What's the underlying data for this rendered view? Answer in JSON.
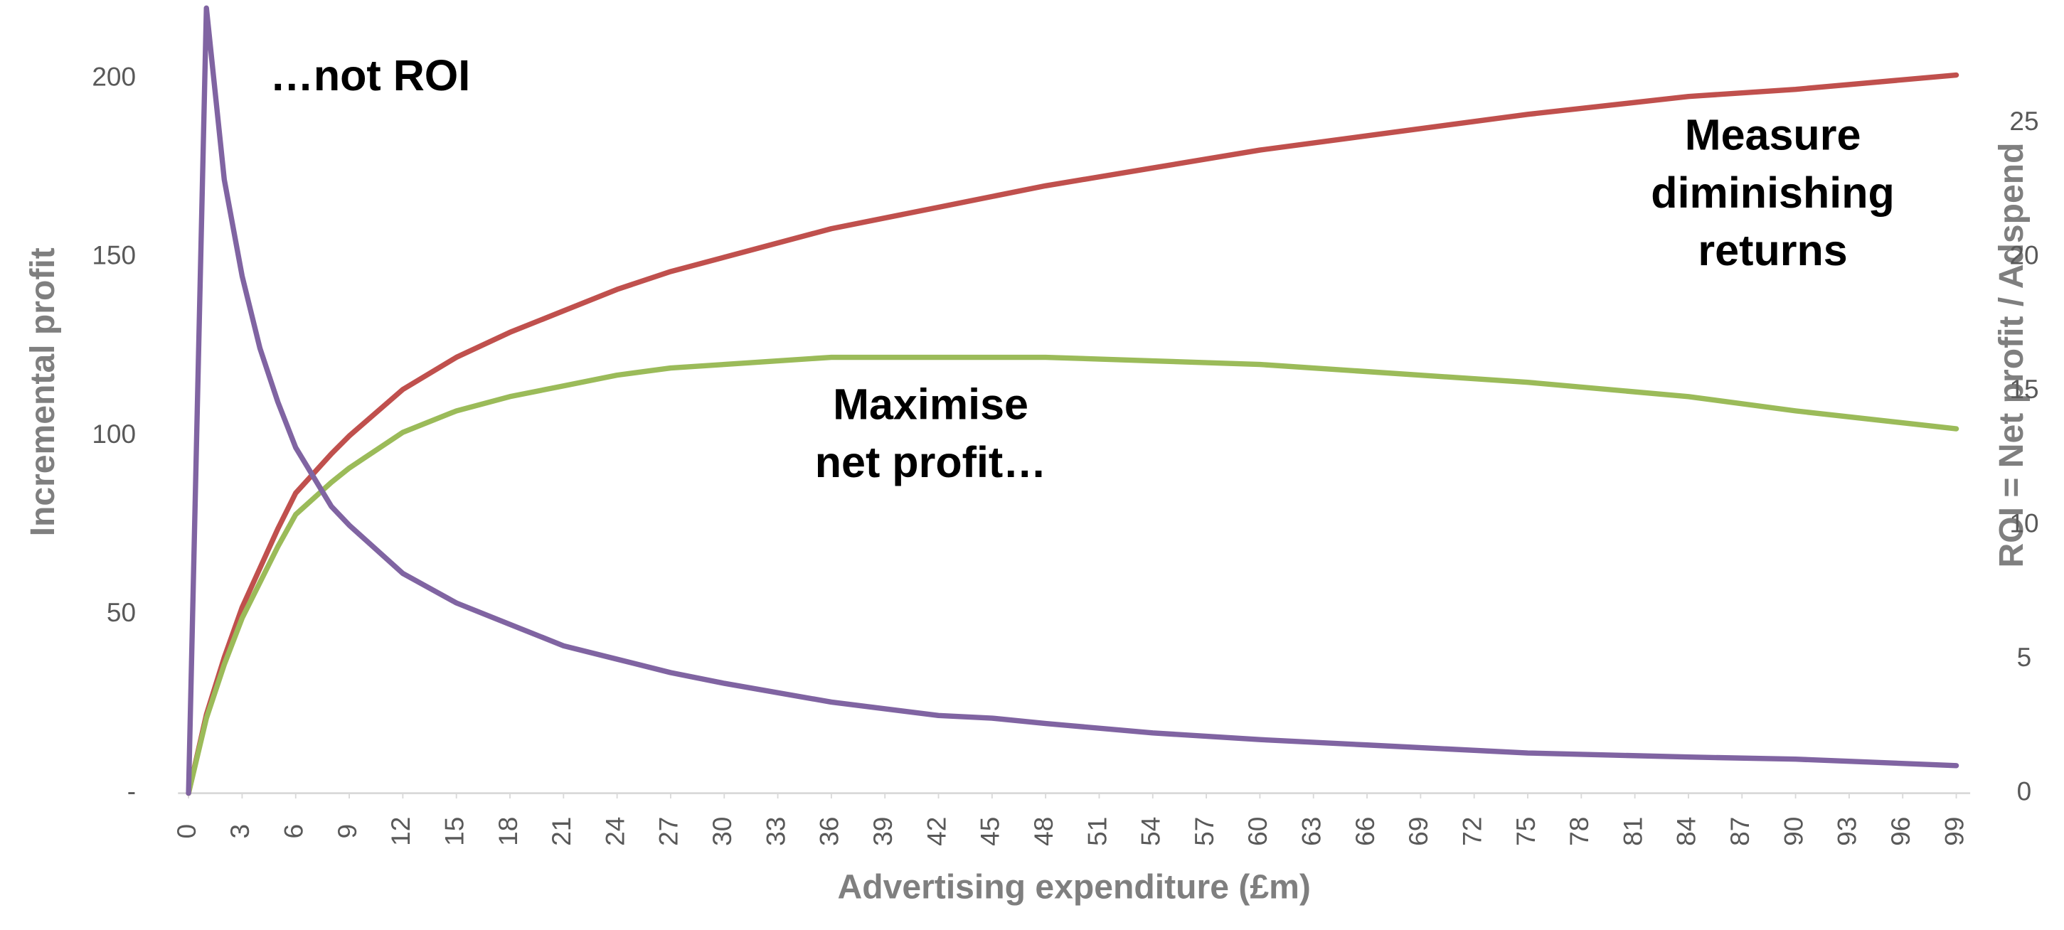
{
  "chart_data": {
    "type": "line",
    "x_label": "Advertising expenditure (£m)",
    "y_label": "Incremental profit",
    "y2_label": "ROI = Net profit / Adspend",
    "annotations": [
      [
        "…not ROI"
      ],
      [
        "Maximise",
        "net profit…"
      ],
      [
        "Measure",
        "diminishing",
        "returns"
      ]
    ],
    "x": [
      0,
      1,
      2,
      3,
      4,
      5,
      6,
      8,
      9,
      12,
      15,
      18,
      21,
      24,
      27,
      30,
      36,
      42,
      45,
      48,
      54,
      60,
      66,
      75,
      84,
      90,
      99
    ],
    "series": [
      {
        "color": "#c0504d",
        "values": [
          0,
          22,
          38,
          52,
          63,
          74,
          84,
          95,
          100,
          113,
          122,
          129,
          135,
          141,
          146,
          150,
          158,
          164,
          167,
          170,
          175,
          180,
          184,
          190,
          195,
          197,
          201
        ]
      },
      {
        "color": "#9bbb59",
        "values": [
          0,
          21,
          36,
          49,
          59,
          69,
          78,
          87,
          91,
          101,
          107,
          111,
          114,
          117,
          119,
          120,
          122,
          122,
          122,
          122,
          121,
          120,
          118,
          115,
          111,
          107,
          102
        ]
      },
      {
        "color": "#8064a2",
        "axis": "y2",
        "values": [
          0,
          29.3,
          22.9,
          19.3,
          16.6,
          14.6,
          12.9,
          10.7,
          10,
          8.2,
          7.1,
          6.3,
          5.5,
          5,
          4.5,
          4.1,
          3.4,
          2.9,
          2.8,
          2.6,
          2.25,
          2,
          1.8,
          1.5,
          1.35,
          1.27,
          1.03
        ]
      }
    ],
    "xlim": [
      0,
      100
    ],
    "xticks": [
      0,
      3,
      6,
      9,
      12,
      15,
      18,
      21,
      24,
      27,
      30,
      33,
      36,
      39,
      42,
      45,
      48,
      51,
      54,
      57,
      60,
      63,
      66,
      69,
      72,
      75,
      78,
      81,
      84,
      87,
      90,
      93,
      96,
      99
    ],
    "ylim": [
      0,
      222
    ],
    "yticks": [
      {
        "value": 0,
        "label": "-"
      },
      50,
      100,
      150,
      200
    ],
    "y2lim": [
      0,
      29.6
    ],
    "y2ticks": [
      0,
      5,
      10,
      15,
      20,
      25
    ]
  }
}
